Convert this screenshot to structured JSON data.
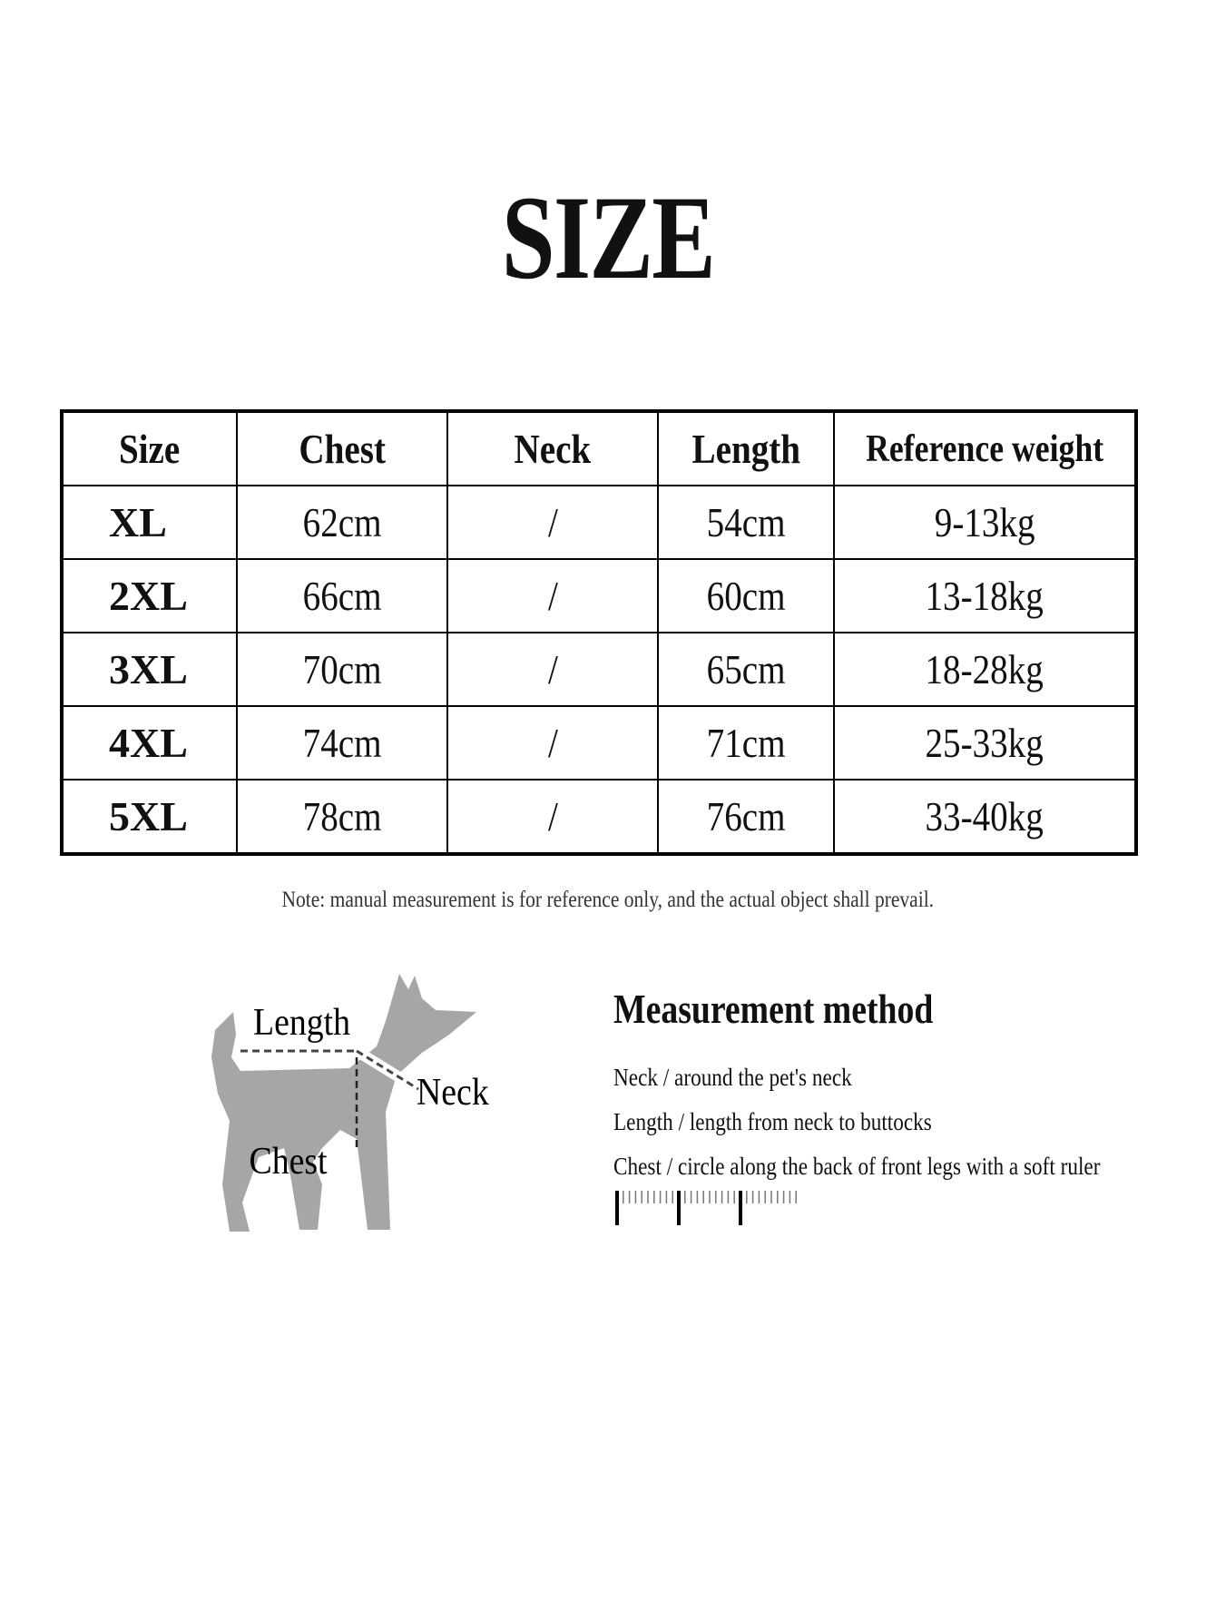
{
  "title": "SIZE",
  "table": {
    "headers": [
      "Size",
      "Chest",
      "Neck",
      "Length",
      "Reference weight"
    ],
    "rows": [
      [
        "XL",
        "62cm",
        "/",
        "54cm",
        "9-13kg"
      ],
      [
        "2XL",
        "66cm",
        "/",
        "60cm",
        "13-18kg"
      ],
      [
        "3XL",
        "70cm",
        "/",
        "65cm",
        "18-28kg"
      ],
      [
        "4XL",
        "74cm",
        "/",
        "71cm",
        "25-33kg"
      ],
      [
        "5XL",
        "78cm",
        "/",
        "76cm",
        "33-40kg"
      ]
    ]
  },
  "note": "Note: manual measurement is for reference only, and the actual object shall prevail.",
  "diagram": {
    "length": "Length",
    "neck": "Neck",
    "chest": "Chest",
    "color": "#a6a6a6"
  },
  "method": {
    "title": "Measurement method",
    "lines": [
      "Neck / around the pet's neck",
      "Length / length from neck to buttocks",
      "Chest / circle along the back of front legs with a soft ruler"
    ]
  }
}
